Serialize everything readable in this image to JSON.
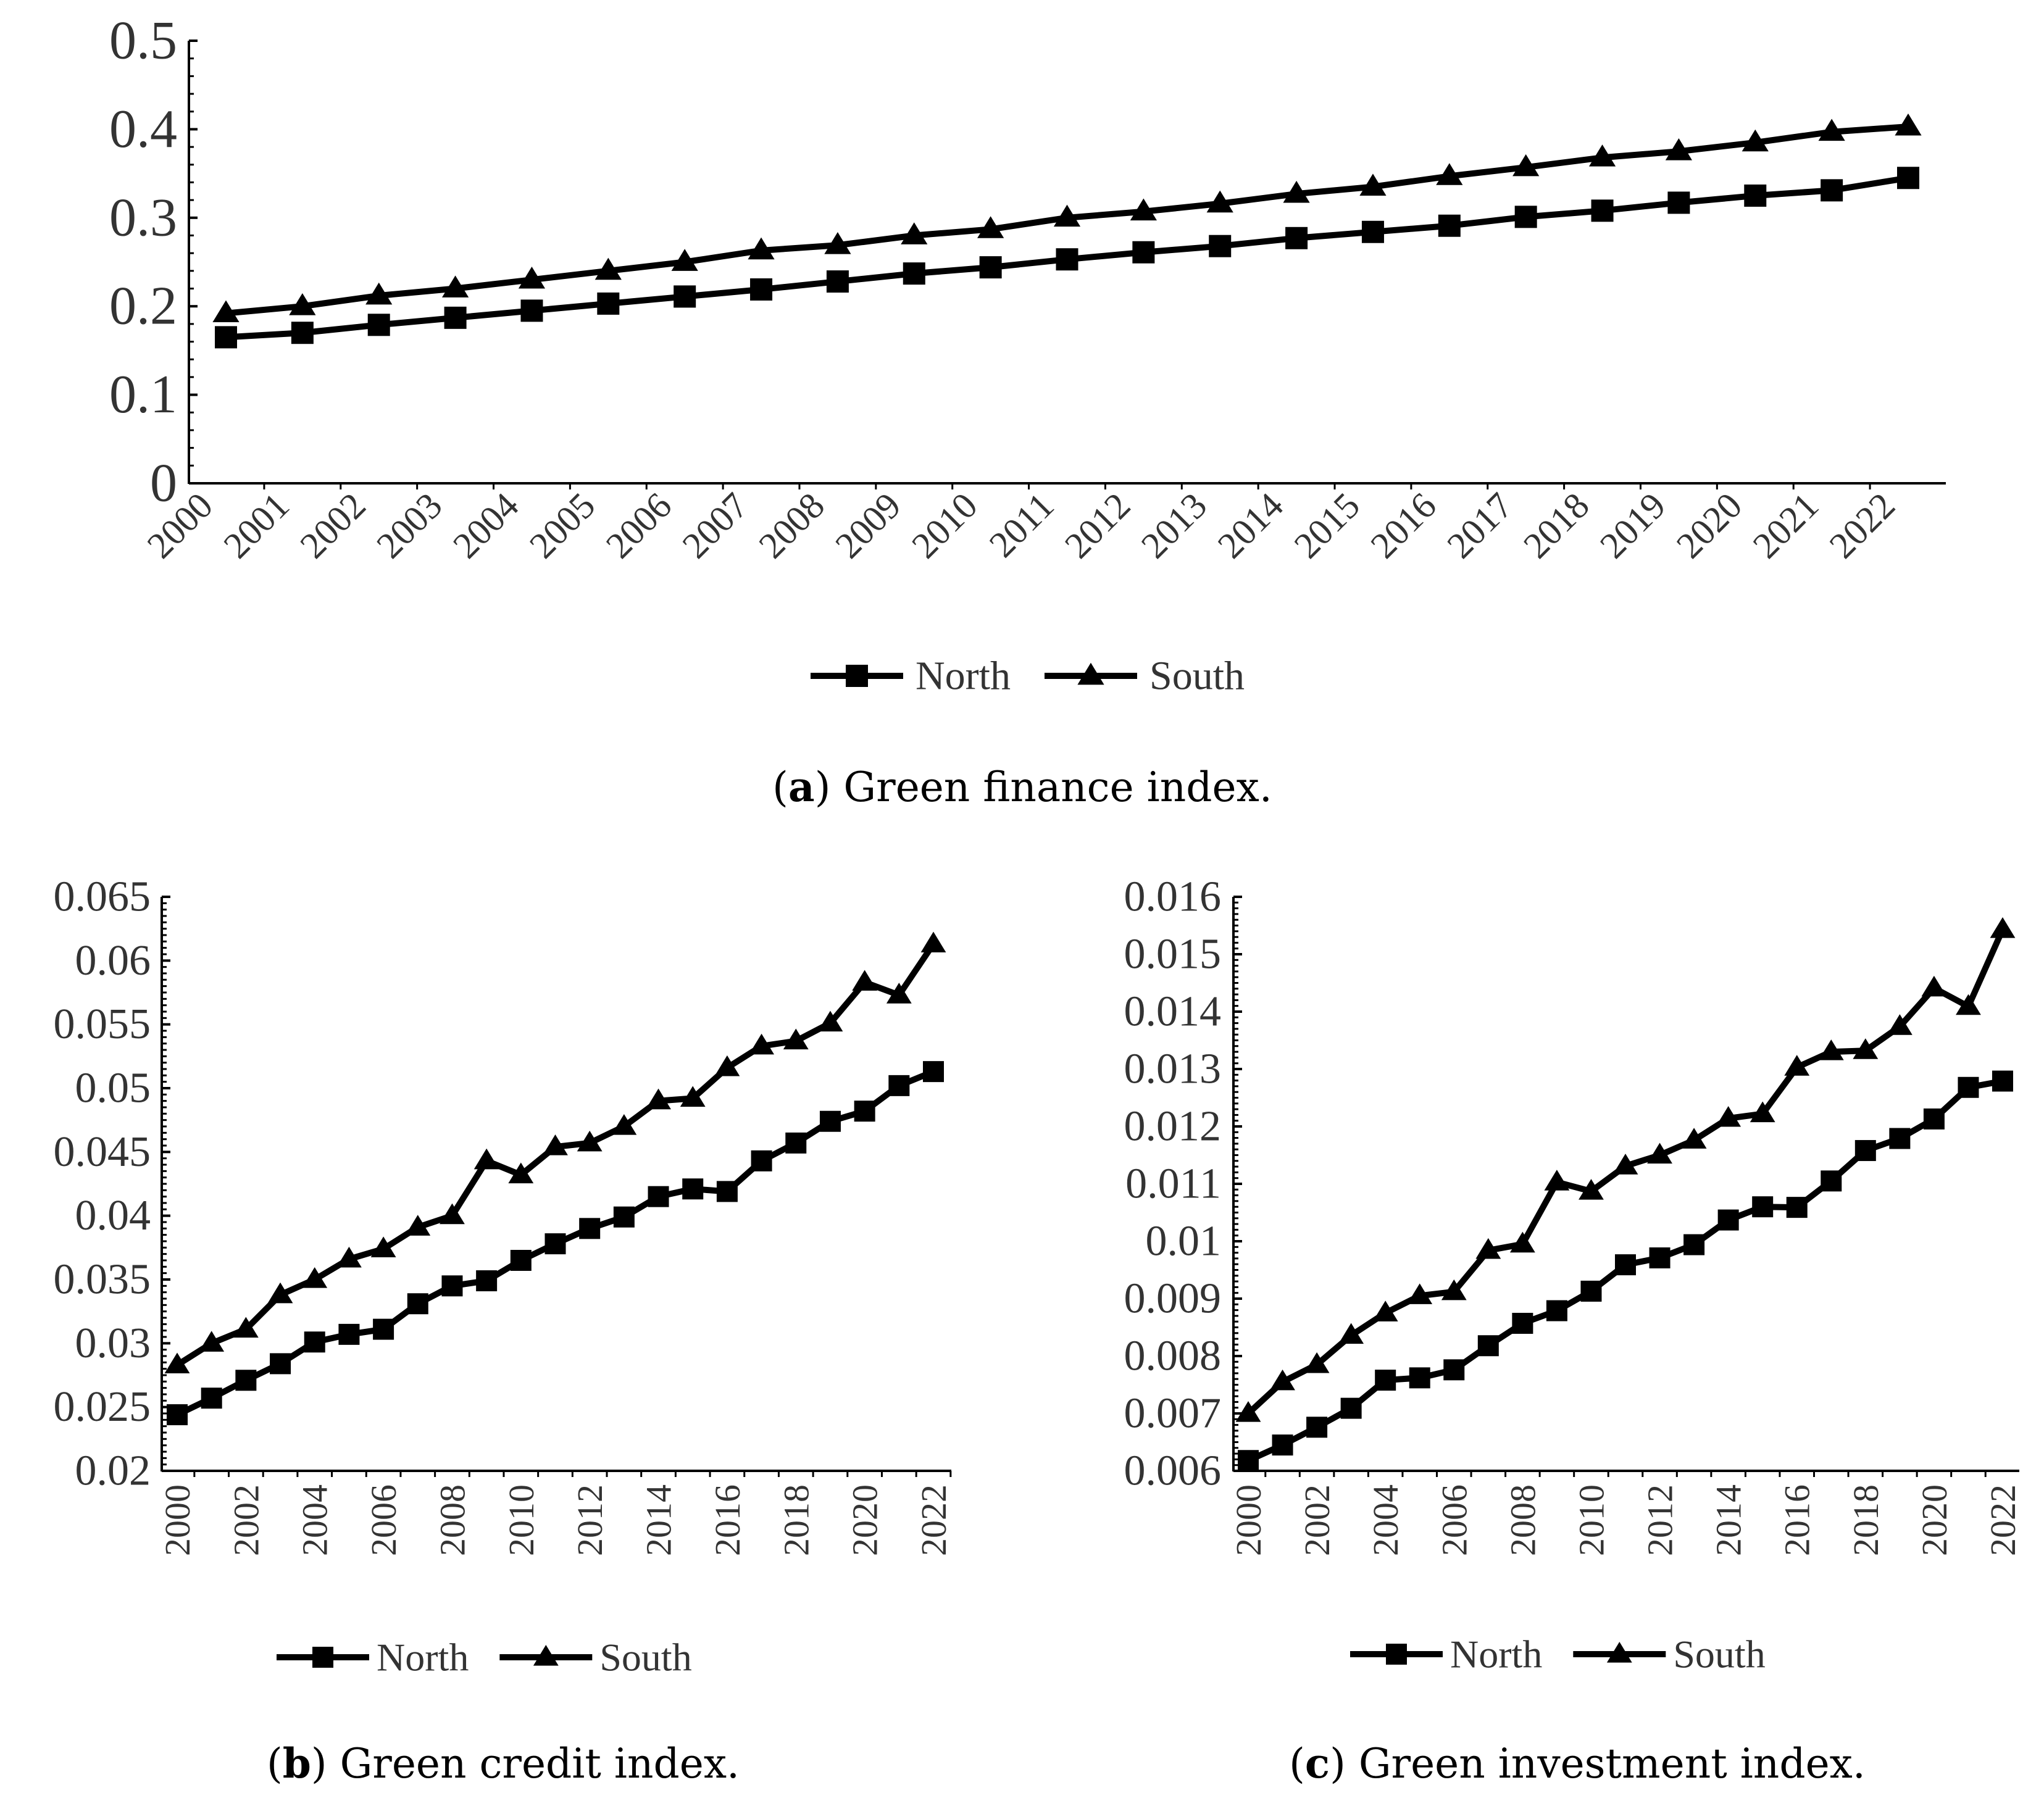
{
  "colors": {
    "line": "#000000",
    "text": "#333333",
    "caption": "#000000"
  },
  "chart_data": [
    {
      "type": "line",
      "id": "a",
      "caption": {
        "letter": "a",
        "text": " Green finance index."
      },
      "x": [
        "2000",
        "2001",
        "2002",
        "2003",
        "2004",
        "2005",
        "2006",
        "2007",
        "2008",
        "2009",
        "2010",
        "2011",
        "2012",
        "2013",
        "2014",
        "2015",
        "2016",
        "2017",
        "2018",
        "2019",
        "2020",
        "2021",
        "2022"
      ],
      "ylim": [
        0,
        0.5
      ],
      "yticks": [
        "0",
        "0.1",
        "0.2",
        "0.3",
        "0.4",
        "0.5"
      ],
      "series": [
        {
          "name": "North",
          "marker": "square",
          "values": [
            0.165,
            0.17,
            0.179,
            0.187,
            0.195,
            0.203,
            0.211,
            0.219,
            0.228,
            0.237,
            0.244,
            0.253,
            0.261,
            0.268,
            0.277,
            0.284,
            0.291,
            0.301,
            0.308,
            0.317,
            0.325,
            0.331,
            0.345
          ]
        },
        {
          "name": "South",
          "marker": "triangle",
          "values": [
            0.192,
            0.2,
            0.212,
            0.22,
            0.23,
            0.24,
            0.25,
            0.263,
            0.269,
            0.28,
            0.287,
            0.3,
            0.307,
            0.316,
            0.327,
            0.335,
            0.347,
            0.357,
            0.368,
            0.375,
            0.385,
            0.397,
            0.403
          ]
        }
      ],
      "legend": {
        "placement": "bottom",
        "labels": [
          "North",
          "South"
        ]
      },
      "xlabel": "",
      "ylabel": ""
    },
    {
      "type": "line",
      "id": "b",
      "caption": {
        "letter": "b",
        "text": " Green credit index."
      },
      "x": [
        "2000",
        "2001",
        "2002",
        "2003",
        "2004",
        "2005",
        "2006",
        "2007",
        "2008",
        "2009",
        "2010",
        "2011",
        "2012",
        "2013",
        "2014",
        "2015",
        "2016",
        "2017",
        "2018",
        "2019",
        "2020",
        "2021",
        "2022"
      ],
      "xtick_labels": [
        "2000",
        "2002",
        "2004",
        "2006",
        "2008",
        "2010",
        "2012",
        "2014",
        "2016",
        "2018",
        "2020",
        "2022"
      ],
      "ylim": [
        0.02,
        0.065
      ],
      "yticks": [
        "0.02",
        "0.025",
        "0.03",
        "0.035",
        "0.04",
        "0.045",
        "0.05",
        "0.055",
        "0.06",
        "0.065"
      ],
      "series": [
        {
          "name": "North",
          "marker": "square",
          "values": [
            0.0244,
            0.0257,
            0.0271,
            0.0284,
            0.0301,
            0.0307,
            0.0311,
            0.0331,
            0.0345,
            0.0349,
            0.0365,
            0.0378,
            0.039,
            0.0399,
            0.0415,
            0.0421,
            0.0419,
            0.0443,
            0.0457,
            0.0474,
            0.0482,
            0.0502,
            0.0513
          ]
        },
        {
          "name": "South",
          "marker": "triangle",
          "values": [
            0.0283,
            0.03,
            0.0311,
            0.0338,
            0.035,
            0.0366,
            0.0374,
            0.0391,
            0.04,
            0.0443,
            0.0432,
            0.0454,
            0.0457,
            0.047,
            0.049,
            0.0492,
            0.0516,
            0.0533,
            0.0537,
            0.0551,
            0.0583,
            0.0573,
            0.0613
          ]
        }
      ],
      "legend": {
        "placement": "bottom",
        "labels": [
          "North",
          "South"
        ]
      },
      "xlabel": "",
      "ylabel": ""
    },
    {
      "type": "line",
      "id": "c",
      "caption": {
        "letter": "c",
        "text": " Green investment index."
      },
      "x": [
        "2000",
        "2001",
        "2002",
        "2003",
        "2004",
        "2005",
        "2006",
        "2007",
        "2008",
        "2009",
        "2010",
        "2011",
        "2012",
        "2013",
        "2014",
        "2015",
        "2016",
        "2017",
        "2018",
        "2019",
        "2020",
        "2021",
        "2022"
      ],
      "xtick_labels": [
        "2000",
        "2002",
        "2004",
        "2006",
        "2008",
        "2010",
        "2012",
        "2014",
        "2016",
        "2018",
        "2020",
        "2022"
      ],
      "ylim": [
        0.006,
        0.016
      ],
      "yticks": [
        "0.006",
        "0.007",
        "0.008",
        "0.009",
        "0.01",
        "0.011",
        "0.012",
        "0.013",
        "0.014",
        "0.015",
        "0.016"
      ],
      "series": [
        {
          "name": "North",
          "marker": "square",
          "values": [
            0.00618,
            0.00645,
            0.00676,
            0.00709,
            0.00758,
            0.00762,
            0.00776,
            0.00818,
            0.00857,
            0.00879,
            0.00913,
            0.00959,
            0.00971,
            0.00994,
            0.01037,
            0.0106,
            0.01059,
            0.01105,
            0.01158,
            0.01179,
            0.01213,
            0.01268,
            0.01279
          ]
        },
        {
          "name": "South",
          "marker": "triangle",
          "values": [
            0.007,
            0.00755,
            0.00785,
            0.00836,
            0.00875,
            0.00905,
            0.00912,
            0.00984,
            0.00995,
            0.01103,
            0.01087,
            0.01131,
            0.0115,
            0.01176,
            0.01214,
            0.01222,
            0.01303,
            0.0133,
            0.01332,
            0.01374,
            0.01441,
            0.01409,
            0.01543
          ]
        }
      ],
      "legend": {
        "placement": "bottom",
        "labels": [
          "North",
          "South"
        ]
      },
      "xlabel": "",
      "ylabel": ""
    }
  ]
}
